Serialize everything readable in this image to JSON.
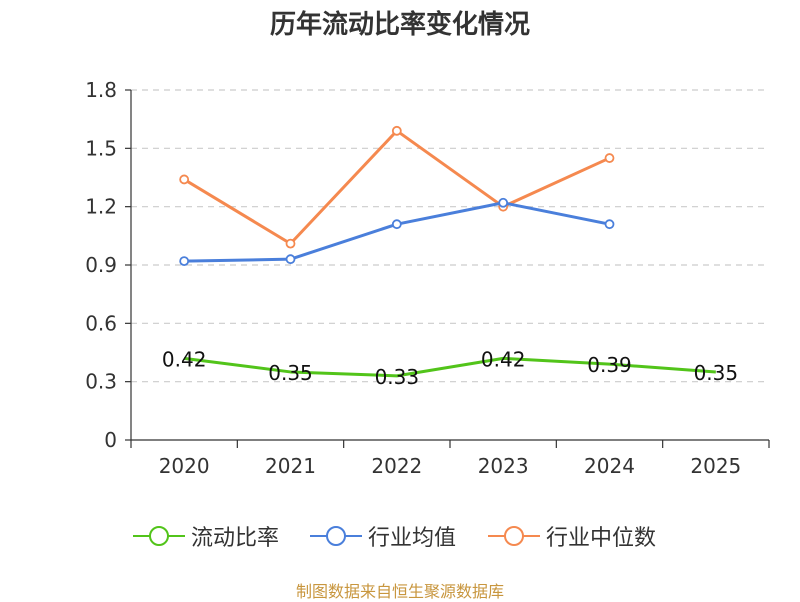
{
  "chart_data": {
    "type": "line",
    "title": "历年流动比率变化情况",
    "categories": [
      "2020",
      "2021",
      "2022",
      "2023",
      "2024",
      "2025"
    ],
    "ylim": [
      0,
      1.8
    ],
    "yticks": [
      "0",
      "0.3",
      "0.6",
      "0.9",
      "1.2",
      "1.5",
      "1.8"
    ],
    "grid": true,
    "legend_position": "bottom",
    "series": [
      {
        "name": "流动比率",
        "color": "#52c41a",
        "values": [
          0.42,
          0.35,
          0.33,
          0.42,
          0.39,
          0.35
        ],
        "labels": [
          "0.42",
          "0.35",
          "0.33",
          "0.42",
          "0.39",
          "0.35"
        ]
      },
      {
        "name": "行业均值",
        "color": "#4a7fdb",
        "values": [
          0.92,
          0.93,
          1.11,
          1.22,
          1.11,
          null
        ]
      },
      {
        "name": "行业中位数",
        "color": "#f5894f",
        "values": [
          1.34,
          1.01,
          1.59,
          1.2,
          1.45,
          null
        ]
      }
    ]
  },
  "source_note": "制图数据来自恒生聚源数据库"
}
